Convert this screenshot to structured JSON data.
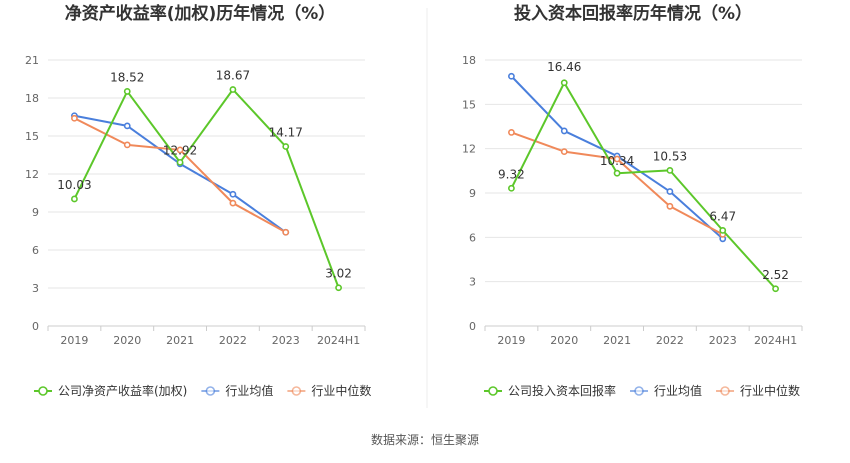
{
  "source_text": "数据来源：恒生聚源",
  "chart_data": [
    {
      "type": "line",
      "title": "净资产收益率(加权)历年情况（%）",
      "categories": [
        "2019",
        "2020",
        "2021",
        "2022",
        "2023",
        "2024H1"
      ],
      "yticks": [
        "0",
        "3",
        "6",
        "9",
        "12",
        "15",
        "18",
        "21"
      ],
      "ylim": [
        0,
        21
      ],
      "grid": true,
      "legend_position": "bottom-left",
      "series": [
        {
          "name": "公司净资产收益率(加权)",
          "color": "#5cc72a",
          "values": [
            10.03,
            18.52,
            12.92,
            18.67,
            14.17,
            3.02
          ],
          "labels": [
            "10.03",
            "18.52",
            "12.92",
            "18.67",
            "14.17",
            "3.02"
          ]
        },
        {
          "name": "行业均值",
          "color": "#4a7fdc",
          "values": [
            16.6,
            15.8,
            12.8,
            10.4,
            7.4,
            null
          ]
        },
        {
          "name": "行业中位数",
          "color": "#f0895a",
          "values": [
            16.4,
            14.3,
            13.9,
            9.7,
            7.4,
            null
          ]
        }
      ]
    },
    {
      "type": "line",
      "title": "投入资本回报率历年情况（%）",
      "categories": [
        "2019",
        "2020",
        "2021",
        "2022",
        "2023",
        "2024H1"
      ],
      "yticks": [
        "0",
        "3",
        "6",
        "9",
        "12",
        "15",
        "18"
      ],
      "ylim": [
        0,
        18
      ],
      "grid": true,
      "legend_position": "bottom-left",
      "series": [
        {
          "name": "公司投入资本回报率",
          "color": "#5cc72a",
          "values": [
            9.32,
            16.46,
            10.34,
            10.53,
            6.47,
            2.52
          ],
          "labels": [
            "9.32",
            "16.46",
            "10.34",
            "10.53",
            "6.47",
            "2.52"
          ]
        },
        {
          "name": "行业均值",
          "color": "#4a7fdc",
          "values": [
            16.9,
            13.2,
            11.5,
            9.1,
            5.9,
            null
          ]
        },
        {
          "name": "行业中位数",
          "color": "#f0895a",
          "values": [
            13.1,
            11.8,
            11.3,
            8.1,
            6.2,
            null
          ]
        }
      ]
    }
  ]
}
